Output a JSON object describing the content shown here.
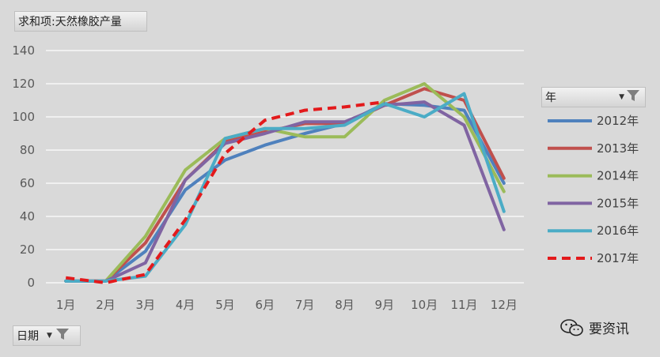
{
  "value_field_label": "求和项:天然橡胶产量",
  "axis_field_label": "日期",
  "legend_field_label": "年",
  "watermark_text": "要资讯",
  "icons": {
    "filter": "funnel-filter-icon",
    "dropdown": "dropdown-arrow-icon",
    "watermark": "wechat-icon"
  },
  "chart_data": {
    "type": "line",
    "categories": [
      "1月",
      "2月",
      "3月",
      "4月",
      "5月",
      "6月",
      "7月",
      "8月",
      "9月",
      "10月",
      "11月",
      "12月"
    ],
    "ylim": [
      0,
      140
    ],
    "yticks": [
      0,
      20,
      40,
      60,
      80,
      100,
      120,
      140
    ],
    "grid": true,
    "legend_position": "right",
    "series": [
      {
        "name": "2012年",
        "color": "#4f81bd",
        "dashed": false,
        "values": [
          1,
          1,
          19,
          56,
          74,
          83,
          90,
          96,
          108,
          107,
          104,
          60
        ]
      },
      {
        "name": "2013年",
        "color": "#c0504d",
        "dashed": false,
        "values": [
          1,
          1,
          24,
          62,
          85,
          91,
          96,
          96,
          107,
          117,
          110,
          63
        ]
      },
      {
        "name": "2014年",
        "color": "#9bbb59",
        "dashed": false,
        "values": [
          1,
          1,
          28,
          68,
          87,
          93,
          88,
          88,
          110,
          120,
          100,
          55
        ]
      },
      {
        "name": "2015年",
        "color": "#8064a2",
        "dashed": false,
        "values": [
          1,
          1,
          12,
          62,
          84,
          90,
          97,
          97,
          107,
          109,
          95,
          32
        ]
      },
      {
        "name": "2016年",
        "color": "#4bacc6",
        "dashed": false,
        "values": [
          1,
          1,
          4,
          35,
          87,
          93,
          93,
          95,
          108,
          100,
          114,
          43
        ]
      },
      {
        "name": "2017年",
        "color": "#e31a1c",
        "dashed": true,
        "values": [
          3,
          0,
          5,
          38,
          78,
          98,
          104,
          106,
          109,
          null,
          null,
          null
        ]
      }
    ]
  }
}
